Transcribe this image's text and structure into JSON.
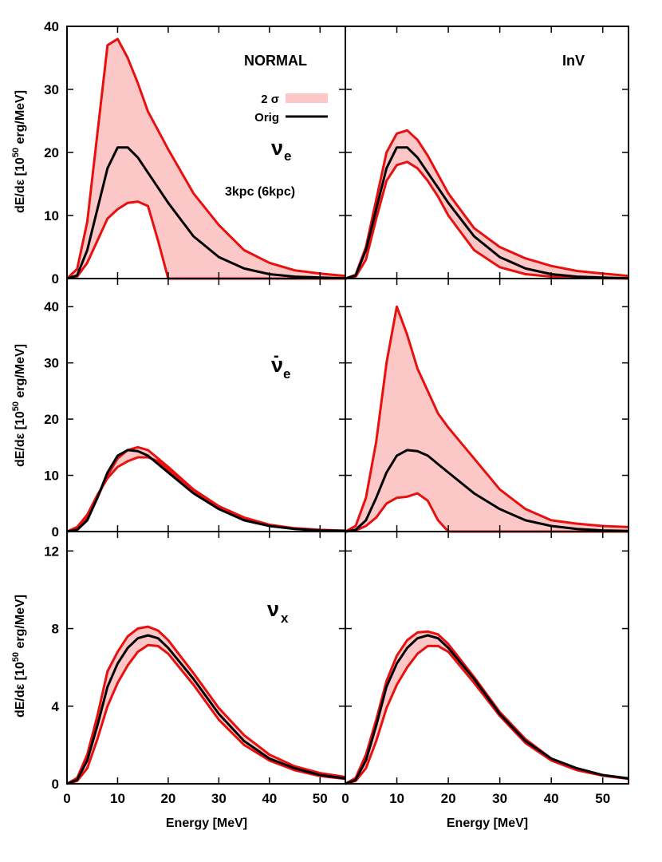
{
  "colors": {
    "band_fill": "#fcc7c7",
    "band_edge": "#e8100f",
    "orig_line": "#000000"
  },
  "legend": {
    "band_label": "2 σ",
    "line_label": "Orig"
  },
  "x_axis_label": "Energy [MeV]",
  "y_axis_label_prefix": "dE/dε [10",
  "y_axis_label_exp": "50",
  "y_axis_label_suffix": " erg/MeV]",
  "x_ticks": [
    "0",
    "10",
    "20",
    "30",
    "40",
    "50"
  ],
  "panel_annotations": {
    "normal": "NORMAL",
    "inverted": "InV",
    "distance": "3kpc (6kpc)",
    "nu_e": {
      "symbol": "ν",
      "sub": "e"
    },
    "nubar_e": {
      "bar": "-",
      "symbol": "ν",
      "sub": "e"
    },
    "nu_x": {
      "symbol": "ν",
      "sub": "x"
    }
  },
  "chart_data": [
    {
      "type": "area",
      "flavor": "nu_e",
      "hierarchy": "NORMAL",
      "xlim": [
        0,
        55
      ],
      "ylim": [
        0,
        40
      ],
      "yticks": [
        0,
        10,
        20,
        30,
        40
      ],
      "grid": false,
      "legend_position": "top-right",
      "x": [
        0,
        2,
        4,
        6,
        8,
        10,
        12,
        14,
        16,
        18,
        20,
        25,
        30,
        35,
        40,
        45,
        50,
        55
      ],
      "series": [
        {
          "name": "2 σ",
          "role": "upper",
          "values": [
            0,
            1.5,
            9,
            23,
            37,
            38,
            35,
            31,
            26.5,
            23.5,
            20.5,
            13.5,
            8.5,
            4.5,
            2.5,
            1.3,
            0.8,
            0.4
          ]
        },
        {
          "name": "2 σ",
          "role": "lower",
          "values": [
            0,
            0.3,
            2.5,
            6,
            9.5,
            11,
            12,
            12.2,
            11.5,
            6,
            0,
            0,
            0,
            0,
            0,
            0,
            0,
            0
          ]
        },
        {
          "name": "Orig",
          "role": "original",
          "values": [
            0,
            0.5,
            4.5,
            11,
            17.5,
            20.8,
            20.8,
            19.2,
            16.8,
            14.4,
            12,
            6.7,
            3.4,
            1.6,
            0.7,
            0.3,
            0.15,
            0.05
          ]
        }
      ]
    },
    {
      "type": "area",
      "flavor": "nu_e",
      "hierarchy": "InV",
      "xlim": [
        0,
        55
      ],
      "ylim": [
        0,
        40
      ],
      "yticks": [
        0,
        10,
        20,
        30,
        40
      ],
      "grid": false,
      "x": [
        0,
        2,
        4,
        6,
        8,
        10,
        12,
        14,
        16,
        18,
        20,
        25,
        30,
        35,
        40,
        45,
        50,
        55
      ],
      "series": [
        {
          "name": "2 σ",
          "role": "upper",
          "values": [
            0,
            0.6,
            5,
            12.5,
            20,
            23,
            23.5,
            22,
            19.5,
            16.5,
            13.5,
            8,
            5,
            3.2,
            2,
            1.2,
            0.8,
            0.4
          ]
        },
        {
          "name": "2 σ",
          "role": "lower",
          "values": [
            0,
            0.3,
            3,
            9.5,
            15.5,
            18,
            18.5,
            17.5,
            15.5,
            13,
            10,
            4.5,
            1.8,
            0.7,
            0.3,
            0.1,
            0.05,
            0
          ]
        },
        {
          "name": "Orig",
          "role": "original",
          "values": [
            0,
            0.5,
            4.5,
            11,
            17.5,
            20.8,
            20.8,
            19.2,
            16.8,
            14.4,
            12,
            6.7,
            3.4,
            1.6,
            0.7,
            0.3,
            0.15,
            0.05
          ]
        }
      ]
    },
    {
      "type": "area",
      "flavor": "nubar_e",
      "hierarchy": "NORMAL",
      "xlim": [
        0,
        55
      ],
      "ylim": [
        0,
        45
      ],
      "yticks": [
        0,
        10,
        20,
        30,
        40
      ],
      "grid": false,
      "x": [
        0,
        2,
        4,
        6,
        8,
        10,
        12,
        14,
        16,
        18,
        20,
        25,
        30,
        35,
        40,
        45,
        50,
        55
      ],
      "series": [
        {
          "name": "2 σ",
          "role": "upper",
          "values": [
            0,
            0.5,
            2.5,
            6,
            10,
            13,
            14.5,
            15,
            14.5,
            13,
            11.5,
            7.5,
            4.5,
            2.5,
            1.2,
            0.6,
            0.3,
            0.15
          ]
        },
        {
          "name": "2 σ",
          "role": "lower",
          "values": [
            0,
            0.8,
            3,
            6.5,
            9.5,
            11.5,
            12.5,
            13.2,
            13.2,
            12.5,
            11,
            7,
            4.2,
            2.2,
            1,
            0.5,
            0.2,
            0.1
          ]
        },
        {
          "name": "Orig",
          "role": "original",
          "values": [
            0,
            0.3,
            2,
            6,
            10.5,
            13.5,
            14.5,
            14.3,
            13.5,
            12,
            10.5,
            6.8,
            4,
            2,
            1,
            0.45,
            0.2,
            0.1
          ]
        }
      ]
    },
    {
      "type": "area",
      "flavor": "nubar_e",
      "hierarchy": "InV",
      "xlim": [
        0,
        55
      ],
      "ylim": [
        0,
        45
      ],
      "yticks": [
        0,
        10,
        20,
        30,
        40
      ],
      "grid": false,
      "x": [
        0,
        2,
        4,
        6,
        8,
        10,
        12,
        14,
        16,
        18,
        20,
        25,
        30,
        35,
        40,
        45,
        50,
        55
      ],
      "series": [
        {
          "name": "2 σ",
          "role": "upper",
          "values": [
            0,
            1,
            6,
            16,
            30,
            40,
            35,
            29,
            25,
            21,
            18.5,
            13,
            7.5,
            4,
            2,
            1.4,
            1,
            0.8
          ]
        },
        {
          "name": "2 σ",
          "role": "lower",
          "values": [
            0,
            0.2,
            1,
            2.5,
            5,
            6,
            6.2,
            6.8,
            5.5,
            2,
            0,
            0,
            0,
            0,
            0,
            0,
            0,
            0
          ]
        },
        {
          "name": "Orig",
          "role": "original",
          "values": [
            0,
            0.3,
            2,
            6,
            10.5,
            13.5,
            14.5,
            14.3,
            13.5,
            12,
            10.5,
            6.8,
            4,
            2,
            1,
            0.45,
            0.2,
            0.1
          ]
        }
      ]
    },
    {
      "type": "area",
      "flavor": "nu_x",
      "hierarchy": "NORMAL",
      "xlim": [
        0,
        55
      ],
      "ylim": [
        0,
        13
      ],
      "yticks": [
        0,
        4,
        8,
        12
      ],
      "grid": false,
      "x": [
        0,
        2,
        4,
        6,
        8,
        10,
        12,
        14,
        16,
        18,
        20,
        25,
        30,
        35,
        40,
        45,
        50,
        55
      ],
      "series": [
        {
          "name": "2 σ",
          "role": "upper",
          "values": [
            0,
            0.3,
            1.5,
            3.5,
            5.8,
            6.8,
            7.6,
            8,
            8.1,
            7.9,
            7.4,
            5.7,
            3.9,
            2.5,
            1.5,
            0.9,
            0.55,
            0.35
          ]
        },
        {
          "name": "2 σ",
          "role": "lower",
          "values": [
            0,
            0.15,
            0.8,
            2.3,
            4,
            5.2,
            6.1,
            6.8,
            7.15,
            7.1,
            6.7,
            5.1,
            3.3,
            2,
            1.2,
            0.7,
            0.4,
            0.25
          ]
        },
        {
          "name": "Orig",
          "role": "original",
          "values": [
            0,
            0.2,
            1.2,
            3,
            5,
            6.2,
            7,
            7.5,
            7.65,
            7.5,
            7,
            5.4,
            3.6,
            2.2,
            1.3,
            0.8,
            0.45,
            0.28
          ]
        }
      ]
    },
    {
      "type": "area",
      "flavor": "nu_x",
      "hierarchy": "InV",
      "xlim": [
        0,
        55
      ],
      "ylim": [
        0,
        13
      ],
      "yticks": [
        0,
        4,
        8,
        12
      ],
      "grid": false,
      "x": [
        0,
        2,
        4,
        6,
        8,
        10,
        12,
        14,
        16,
        18,
        20,
        25,
        30,
        35,
        40,
        45,
        50,
        55
      ],
      "series": [
        {
          "name": "2 σ",
          "role": "upper",
          "values": [
            0,
            0.3,
            1.5,
            3.3,
            5.3,
            6.6,
            7.4,
            7.8,
            7.85,
            7.7,
            7.2,
            5.5,
            3.7,
            2.3,
            1.3,
            0.75,
            0.45,
            0.28
          ]
        },
        {
          "name": "2 σ",
          "role": "lower",
          "values": [
            0,
            0.15,
            0.8,
            2.2,
            3.9,
            5.1,
            6,
            6.7,
            7.1,
            7.1,
            6.8,
            5.2,
            3.5,
            2.1,
            1.2,
            0.7,
            0.42,
            0.26
          ]
        },
        {
          "name": "Orig",
          "role": "original",
          "values": [
            0,
            0.2,
            1.2,
            3,
            5,
            6.2,
            7,
            7.5,
            7.65,
            7.5,
            7,
            5.4,
            3.6,
            2.2,
            1.3,
            0.8,
            0.45,
            0.28
          ]
        }
      ]
    }
  ]
}
